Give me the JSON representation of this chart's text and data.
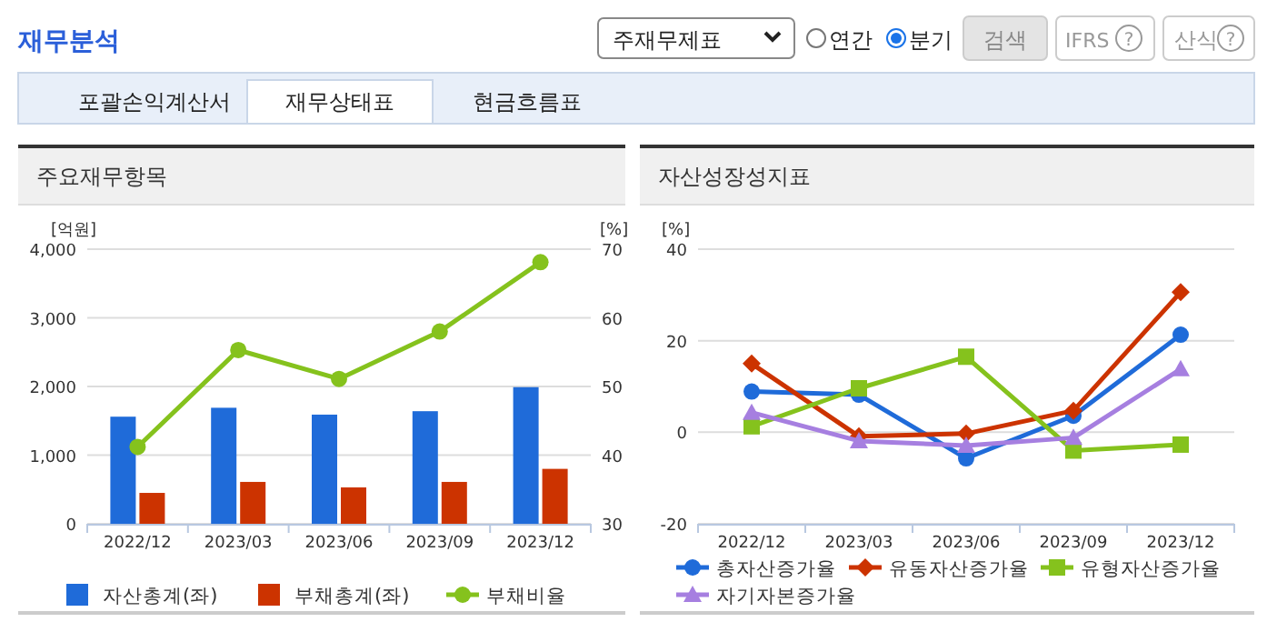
{
  "chart_data": [
    {
      "type": "other",
      "title": "재무분석",
      "annotations": [
        "주재무제표",
        "연간",
        "분기",
        "검색",
        "IFRS",
        "?",
        "산식",
        "?",
        "포괄손익계산서",
        "재무상태표",
        "현금흐름표"
      ]
    },
    {
      "type": "bar",
      "title": "주요재무항목",
      "categories": [
        "2022/12",
        "2023/03",
        "2023/06",
        "2023/09",
        "2023/12"
      ],
      "series": [
        {
          "name": "자산총계(좌)",
          "color": "#1f6bd9",
          "values": [
            1560,
            1690,
            1590,
            1640,
            1990
          ]
        },
        {
          "name": "부채총계(좌)",
          "color": "#cc3300",
          "values": [
            450,
            610,
            530,
            610,
            800
          ]
        },
        {
          "name": "부채비율",
          "type": "line",
          "axis": "y2",
          "marker": "circle",
          "color": "#85c21d",
          "values": [
            41.2,
            55.3,
            51.1,
            58.0,
            68.1
          ]
        }
      ],
      "ylabel": "[억원]",
      "y2label": "[%]",
      "ylim": [
        0,
        4000
      ],
      "yticks": [
        0,
        {
          "value": 1000,
          "label": "1,000"
        },
        {
          "value": 2000,
          "label": "2,000"
        },
        {
          "value": 3000,
          "label": "3,000"
        },
        {
          "value": 4000,
          "label": "4,000"
        }
      ],
      "y2lim": [
        30,
        70
      ],
      "y2ticks": [
        30,
        40,
        50,
        60,
        70
      ],
      "grid": "y",
      "legend": "bottom"
    },
    {
      "type": "line",
      "title": "자산성장성지표",
      "categories": [
        "2022/12",
        "2023/03",
        "2023/06",
        "2023/09",
        "2023/12"
      ],
      "series": [
        {
          "name": "총자산증가율",
          "color": "#1f6bd9",
          "marker": "circle",
          "values": [
            8.9,
            8.2,
            -5.7,
            3.6,
            21.3
          ]
        },
        {
          "name": "유동자산증가율",
          "color": "#cc3300",
          "marker": "diamond",
          "values": [
            15.0,
            -0.9,
            -0.3,
            4.7,
            30.6
          ]
        },
        {
          "name": "유형자산증가율",
          "color": "#85c21d",
          "marker": "square",
          "values": [
            1.3,
            9.6,
            16.5,
            -4.0,
            -2.7
          ]
        },
        {
          "name": "자기자본증가율",
          "color": "#a67fe0",
          "marker": "triangle",
          "values": [
            4.3,
            -1.9,
            -2.9,
            -1.2,
            13.8
          ]
        }
      ],
      "ylabel": "[%]",
      "ylim": [
        -20,
        40
      ],
      "yticks": [
        -20,
        0,
        20,
        40
      ],
      "grid": "y",
      "legend": "bottom"
    }
  ]
}
